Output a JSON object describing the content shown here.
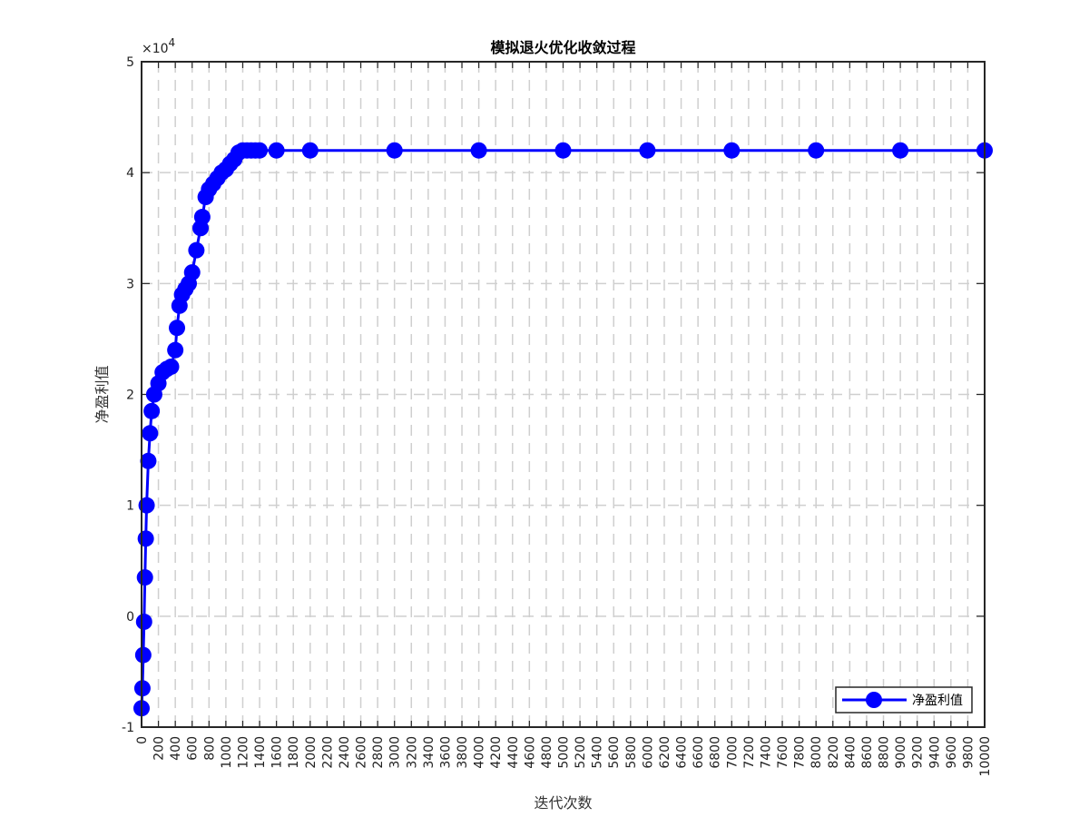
{
  "chart_data": {
    "type": "line",
    "title": "模拟退火优化收敛过程",
    "xlabel": "迭代次数",
    "ylabel": "净盈利值",
    "xlim": [
      0,
      10000
    ],
    "ylim": [
      -10000,
      50000
    ],
    "y_multiplier": "×10",
    "y_exponent": "4",
    "x_ticks": [
      0,
      200,
      400,
      600,
      800,
      1000,
      1200,
      1400,
      1600,
      1800,
      2000,
      2200,
      2400,
      2600,
      2800,
      3000,
      3200,
      3400,
      3600,
      3800,
      4000,
      4200,
      4400,
      4600,
      4800,
      5000,
      5200,
      5400,
      5600,
      5800,
      6000,
      6200,
      6400,
      6600,
      6800,
      7000,
      7200,
      7400,
      7600,
      7800,
      8000,
      8200,
      8400,
      8600,
      8800,
      9000,
      9200,
      9400,
      9600,
      9800,
      10000
    ],
    "x_tick_labels": [
      "0",
      "200",
      "400",
      "600",
      "800",
      "1000",
      "1200",
      "1400",
      "1600",
      "1800",
      "2000",
      "2200",
      "2400",
      "2600",
      "2800",
      "3000",
      "3200",
      "3400",
      "3600",
      "3800",
      "4000",
      "4200",
      "4400",
      "4600",
      "4800",
      "5000",
      "5200",
      "5400",
      "5600",
      "5800",
      "6000",
      "6200",
      "6400",
      "6600",
      "6800",
      "7000",
      "7200",
      "7400",
      "7600",
      "7800",
      "8000",
      "8200",
      "8400",
      "8600",
      "8800",
      "9000",
      "9200",
      "9400",
      "9600",
      "9800",
      "10000"
    ],
    "y_ticks": [
      -10000,
      0,
      10000,
      20000,
      30000,
      40000,
      50000
    ],
    "y_tick_labels": [
      "-1",
      "0",
      "1",
      "2",
      "3",
      "4",
      "5"
    ],
    "grid": true,
    "legend_position": "bottom-right",
    "series": [
      {
        "name": "净盈利值",
        "color": "#0000ff",
        "marker": "circle",
        "x": [
          0,
          10,
          20,
          30,
          40,
          50,
          60,
          80,
          100,
          120,
          150,
          200,
          250,
          300,
          350,
          400,
          420,
          450,
          480,
          520,
          560,
          600,
          650,
          700,
          720,
          760,
          800,
          850,
          900,
          950,
          1000,
          1050,
          1100,
          1150,
          1200,
          1250,
          1300,
          1350,
          1400,
          1600,
          2000,
          3000,
          4000,
          5000,
          6000,
          7000,
          8000,
          9000,
          10000
        ],
        "y": [
          -8300,
          -6500,
          -3500,
          -500,
          3500,
          7000,
          10000,
          14000,
          16500,
          18500,
          20000,
          21000,
          22000,
          22300,
          22500,
          24000,
          26000,
          28000,
          29000,
          29500,
          30000,
          31000,
          33000,
          35000,
          36000,
          37800,
          38500,
          39000,
          39500,
          40000,
          40300,
          40800,
          41200,
          41800,
          42000,
          42000,
          42000,
          42000,
          42000,
          42000,
          42000,
          42000,
          42000,
          42000,
          42000,
          42000,
          42000,
          42000,
          42000
        ]
      }
    ]
  }
}
